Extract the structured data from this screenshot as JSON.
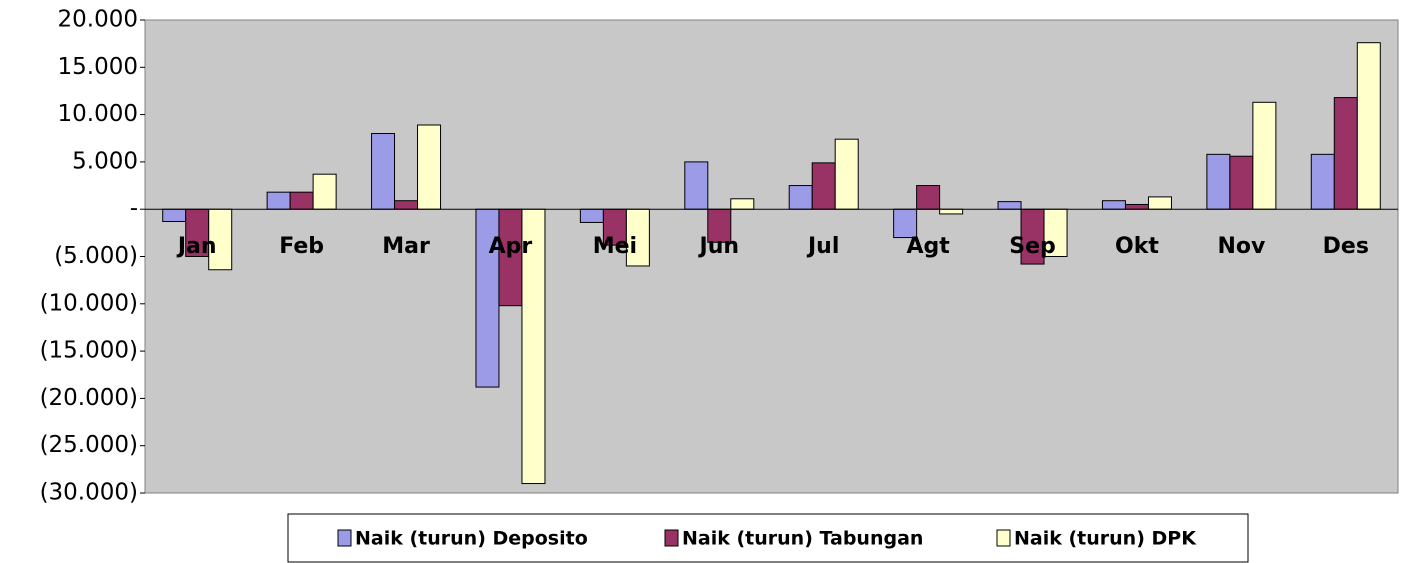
{
  "chart_data": {
    "type": "bar",
    "categories": [
      "Jan",
      "Feb",
      "Mar",
      "Apr",
      "Mei",
      "Jun",
      "Jul",
      "Agt",
      "Sep",
      "Okt",
      "Nov",
      "Des"
    ],
    "series": [
      {
        "name": "Naik (turun) Deposito",
        "color": "#9b9be8",
        "values": [
          -1300,
          1800,
          8000,
          -18800,
          -1400,
          5000,
          2500,
          -3000,
          800,
          900,
          5800,
          5800
        ]
      },
      {
        "name": "Naik (turun) Tabungan",
        "color": "#993366",
        "values": [
          -5000,
          1800,
          900,
          -10200,
          -3800,
          -3500,
          4900,
          2500,
          -5800,
          500,
          5600,
          11800
        ]
      },
      {
        "name": "Naik (turun) DPK",
        "color": "#ffffcc",
        "values": [
          -6400,
          3700,
          8900,
          -29000,
          -6000,
          1100,
          7400,
          -500,
          -5000,
          1300,
          11300,
          17600
        ]
      }
    ],
    "ylim": [
      -30000,
      20000
    ],
    "yticks": [
      {
        "value": 20000,
        "label": "20.000"
      },
      {
        "value": 15000,
        "label": "15.000"
      },
      {
        "value": 10000,
        "label": "10.000"
      },
      {
        "value": 5000,
        "label": "5.000"
      },
      {
        "value": 0,
        "label": "-"
      },
      {
        "value": -5000,
        "label": "(5.000)"
      },
      {
        "value": -10000,
        "label": "(10.000)"
      },
      {
        "value": -15000,
        "label": "(15.000)"
      },
      {
        "value": -20000,
        "label": "(20.000)"
      },
      {
        "value": -25000,
        "label": "(25.000)"
      },
      {
        "value": -30000,
        "label": "(30.000)"
      }
    ],
    "grid": false,
    "legend": "bottom"
  }
}
